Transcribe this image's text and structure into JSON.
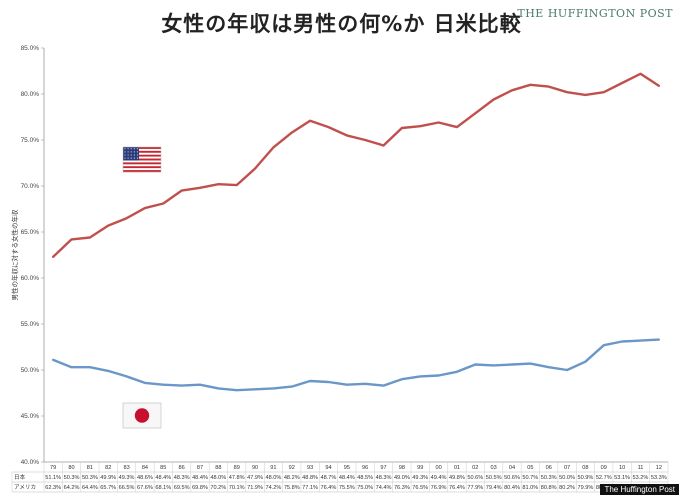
{
  "header": {
    "title": "女性の年収は男性の何%か 日米比較",
    "brand": "THE HUFFINGTON POST",
    "footer_brand": "The Huffington Post"
  },
  "chart_data": {
    "type": "line",
    "ylabel": "男性の年収に対する女性の年収",
    "ylim": [
      40,
      85
    ],
    "yticks": [
      "40.0%",
      "45.0%",
      "50.0%",
      "55.0%",
      "60.0%",
      "65.0%",
      "70.0%",
      "75.0%",
      "80.0%",
      "85.0%"
    ],
    "categories": [
      "79",
      "80",
      "81",
      "82",
      "83",
      "84",
      "85",
      "86",
      "87",
      "88",
      "89",
      "90",
      "91",
      "92",
      "93",
      "94",
      "95",
      "96",
      "97",
      "98",
      "99",
      "00",
      "01",
      "02",
      "03",
      "04",
      "05",
      "06",
      "07",
      "08",
      "09",
      "10",
      "11",
      "12"
    ],
    "series": [
      {
        "name": "日本",
        "color": "#6a97c8",
        "flag": "japan",
        "labels": [
          "51.1%",
          "50.3%",
          "50.3%",
          "49.9%",
          "49.3%",
          "48.6%",
          "48.4%",
          "48.3%",
          "48.4%",
          "48.0%",
          "47.8%",
          "47.9%",
          "48.0%",
          "48.2%",
          "48.8%",
          "48.7%",
          "48.4%",
          "48.5%",
          "48.3%",
          "49.0%",
          "49.3%",
          "49.4%",
          "49.8%",
          "50.6%",
          "50.5%",
          "50.6%",
          "50.7%",
          "50.3%",
          "50.0%",
          "50.9%",
          "52.7%",
          "53.1%",
          "53.2%",
          "53.3%"
        ],
        "values": [
          51.1,
          50.3,
          50.3,
          49.9,
          49.3,
          48.6,
          48.4,
          48.3,
          48.4,
          48.0,
          47.8,
          47.9,
          48.0,
          48.2,
          48.8,
          48.7,
          48.4,
          48.5,
          48.3,
          49.0,
          49.3,
          49.4,
          49.8,
          50.6,
          50.5,
          50.6,
          50.7,
          50.3,
          50.0,
          50.9,
          52.7,
          53.1,
          53.2,
          53.3
        ]
      },
      {
        "name": "アメリカ",
        "color": "#c0504d",
        "flag": "usa",
        "labels": [
          "62.3%",
          "64.2%",
          "64.4%",
          "65.7%",
          "66.5%",
          "67.6%",
          "68.1%",
          "69.5%",
          "69.8%",
          "70.2%",
          "70.1%",
          "71.9%",
          "74.2%",
          "75.8%",
          "77.1%",
          "76.4%",
          "75.5%",
          "75.0%",
          "74.4%",
          "76.3%",
          "76.5%",
          "76.9%",
          "76.4%",
          "77.9%",
          "79.4%",
          "80.4%",
          "81.0%",
          "80.8%",
          "80.2%",
          "79.9%",
          "80.2%",
          "81.2%",
          "82.2%",
          "80.9%"
        ],
        "values": [
          62.3,
          64.2,
          64.4,
          65.7,
          66.5,
          67.6,
          68.1,
          69.5,
          69.8,
          70.2,
          70.1,
          71.9,
          74.2,
          75.8,
          77.1,
          76.4,
          75.5,
          75.0,
          74.4,
          76.3,
          76.5,
          76.9,
          76.4,
          77.9,
          79.4,
          80.4,
          81.0,
          80.8,
          80.2,
          79.9,
          80.2,
          81.2,
          82.2,
          80.9
        ]
      }
    ],
    "grid": false,
    "legend": "table-below"
  }
}
